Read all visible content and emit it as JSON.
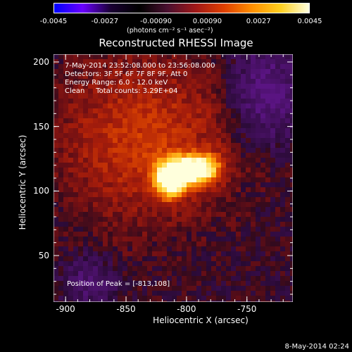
{
  "colorbar": {
    "tick_labels": [
      "-0.0045",
      "-0.0027",
      "-0.00090",
      "0.00090",
      "0.0027",
      "0.0045"
    ],
    "tick_values": [
      -0.0045,
      -0.0027,
      -0.0009,
      0.0009,
      0.0027,
      0.0045
    ],
    "unit_label": "(photons cm⁻² s⁻¹ asec⁻²)",
    "colors": [
      "#0000ff",
      "#6a00ff",
      "#1a0033",
      "#000000",
      "#4a1030",
      "#a01818",
      "#e04000",
      "#ff9000",
      "#ffd020",
      "#ffffe0"
    ]
  },
  "chart_data": {
    "type": "heatmap",
    "title": "Reconstructed RHESSI Image",
    "xlabel": "Heliocentric X (arcsec)",
    "ylabel": "Heliocentric Y (arcsec)",
    "xlim": [
      -910,
      -712
    ],
    "ylim": [
      14,
      206
    ],
    "x_ticks": [
      -900,
      -850,
      -800,
      -750
    ],
    "x_tick_labels": [
      "-900",
      "-850",
      "-800",
      "-750"
    ],
    "y_ticks": [
      50,
      100,
      150,
      200
    ],
    "y_tick_labels": [
      "50",
      "100",
      "150",
      "200"
    ],
    "peak_x": -813,
    "peak_y": 108,
    "sources": [
      {
        "x": -813,
        "y": 108,
        "sx": 9,
        "sy": 9,
        "amp": 1.0
      },
      {
        "x": -800,
        "y": 116,
        "sx": 14,
        "sy": 8,
        "amp": 0.75
      },
      {
        "x": -785,
        "y": 118,
        "sx": 10,
        "sy": 8,
        "amp": 0.55
      },
      {
        "x": -835,
        "y": 140,
        "sx": 50,
        "sy": 45,
        "amp": 0.38
      }
    ]
  },
  "annotations": {
    "time_range": "7-May-2014 23:52:08.000 to 23:56:08.000",
    "detectors": "Detectors: 3F 5F 6F 7F 8F 9F, Att 0",
    "energy": "Energy Range: 6.0 - 12.0 keV",
    "clean": "Clean     Total counts: 3.29E+04",
    "peak": "Position of Peak = [-813,108]"
  },
  "timestamp": "8-May-2014 02:24"
}
